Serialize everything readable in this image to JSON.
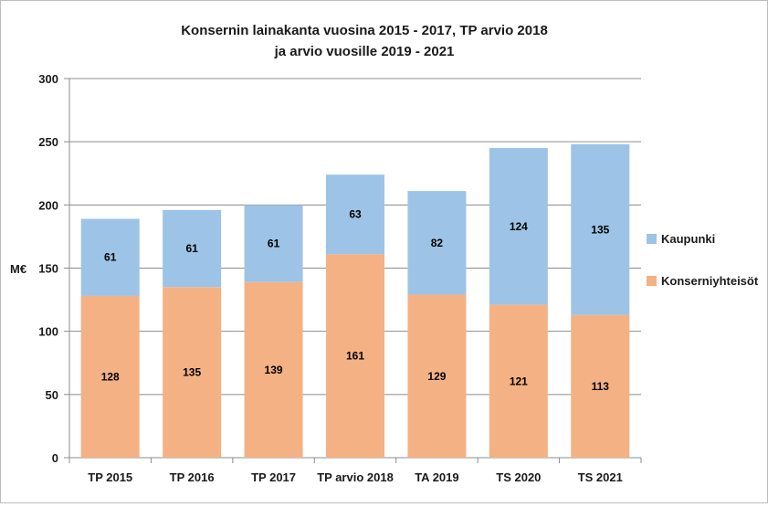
{
  "chart_data": {
    "type": "bar",
    "stacked": true,
    "title": [
      "Konsernin lainakanta vuosina 2015 - 2017,  TP arvio 2018",
      "ja arvio vuosille 2019 - 2021"
    ],
    "ylabel": "M€",
    "xlabel": "",
    "ylim": [
      0,
      300
    ],
    "yticks": [
      0,
      50,
      100,
      150,
      200,
      250,
      300
    ],
    "grid": true,
    "legend_position": "right",
    "categories": [
      "TP 2015",
      "TP 2016",
      "TP 2017",
      "TP arvio 2018",
      "TA 2019",
      "TS 2020",
      "TS 2021"
    ],
    "series": [
      {
        "name": "Konserniyhteisöt",
        "color": "#f4b183",
        "values": [
          128,
          135,
          139,
          161,
          129,
          121,
          113
        ]
      },
      {
        "name": "Kaupunki",
        "color": "#9dc3e6",
        "values": [
          61,
          61,
          61,
          63,
          82,
          124,
          135
        ]
      }
    ]
  }
}
